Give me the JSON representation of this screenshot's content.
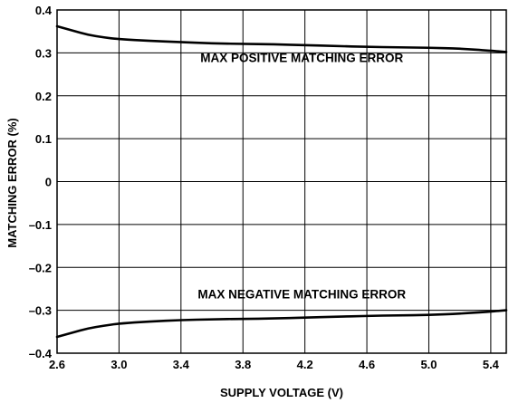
{
  "chart_data": {
    "type": "line",
    "xlabel": "SUPPLY VOLTAGE (V)",
    "ylabel": "MATCHING ERROR (%)",
    "xlim": [
      2.6,
      5.5
    ],
    "ylim": [
      -0.4,
      0.4
    ],
    "grid": true,
    "x_ticks": [
      2.6,
      3.0,
      3.4,
      3.8,
      4.2,
      4.6,
      5.0,
      5.4
    ],
    "x_tick_labels": [
      "2.6",
      "3.0",
      "3.4",
      "3.8",
      "4.2",
      "4.6",
      "5.0",
      "5.4"
    ],
    "y_ticks": [
      0.4,
      0.3,
      0.2,
      0.1,
      0,
      -0.1,
      -0.2,
      -0.3,
      -0.4
    ],
    "y_tick_labels": [
      "0.4",
      "0.3",
      "0.2",
      "0.1",
      "0",
      "–0.1",
      "–0.2",
      "–0.3",
      "–0.4"
    ],
    "series": [
      {
        "name": "MAX POSITIVE MATCHING ERROR",
        "x": [
          2.6,
          2.7,
          2.8,
          2.9,
          3.0,
          3.2,
          3.4,
          3.6,
          3.8,
          4.0,
          4.2,
          4.4,
          4.6,
          4.8,
          5.0,
          5.2,
          5.4,
          5.5
        ],
        "y": [
          0.362,
          0.352,
          0.342,
          0.336,
          0.332,
          0.328,
          0.325,
          0.322,
          0.321,
          0.32,
          0.318,
          0.316,
          0.314,
          0.313,
          0.312,
          0.31,
          0.305,
          0.302
        ]
      },
      {
        "name": "MAX NEGATIVE MATCHING ERROR",
        "x": [
          2.6,
          2.7,
          2.8,
          2.9,
          3.0,
          3.2,
          3.4,
          3.6,
          3.8,
          4.0,
          4.2,
          4.4,
          4.6,
          4.8,
          5.0,
          5.2,
          5.4,
          5.5
        ],
        "y": [
          -0.362,
          -0.352,
          -0.342,
          -0.336,
          -0.331,
          -0.326,
          -0.323,
          -0.321,
          -0.32,
          -0.319,
          -0.317,
          -0.315,
          -0.313,
          -0.312,
          -0.311,
          -0.308,
          -0.303,
          -0.3
        ]
      }
    ],
    "annotations": [
      {
        "text": "MAX POSITIVE MATCHING ERROR",
        "x": 4.18,
        "y": 0.279
      },
      {
        "text": "MAX NEGATIVE MATCHING ERROR",
        "x": 4.18,
        "y": -0.272
      }
    ]
  }
}
